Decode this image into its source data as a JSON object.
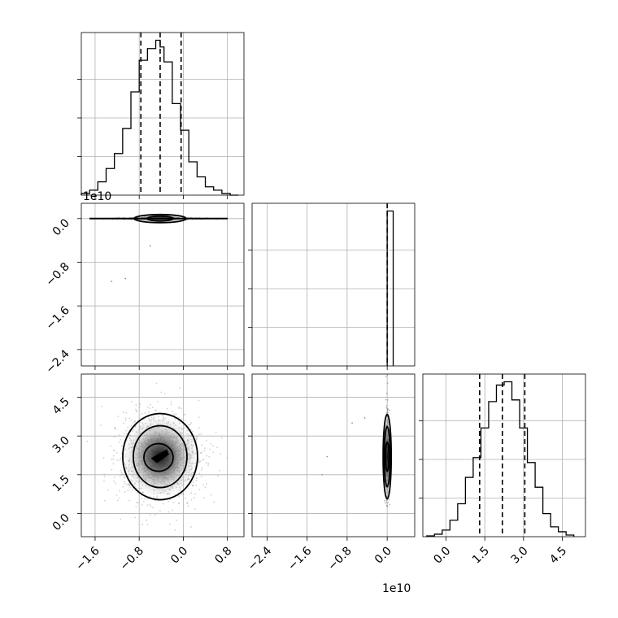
{
  "chart_data": {
    "type": "corner",
    "panels": [
      {
        "id": "p11",
        "kind": "histogram",
        "row": 0,
        "col": 0,
        "xlim": [
          -1.85,
          1.1
        ],
        "bin_edges": [
          -1.85,
          -1.7,
          -1.55,
          -1.4,
          -1.25,
          -1.1,
          -0.95,
          -0.8,
          -0.65,
          -0.5,
          -0.42,
          -0.35,
          -0.2,
          -0.05,
          0.1,
          0.25,
          0.4,
          0.55,
          0.7,
          0.85,
          1.0
        ],
        "counts": [
          0.01,
          0.03,
          0.08,
          0.16,
          0.25,
          0.4,
          0.62,
          0.81,
          0.88,
          0.93,
          0.89,
          0.8,
          0.55,
          0.39,
          0.2,
          0.11,
          0.05,
          0.03,
          0.01,
          0.0
        ],
        "quantiles": [
          -0.77,
          -0.42,
          -0.04
        ],
        "xticks": [
          -1.6,
          -0.8,
          0.0,
          0.8
        ]
      },
      {
        "id": "p21",
        "kind": "density",
        "row": 1,
        "col": 0,
        "xlim": [
          -1.85,
          1.1
        ],
        "ylim": [
          -2.7,
          0.28
        ],
        "yticks": [
          0.0,
          -0.8,
          -1.6,
          -2.4
        ],
        "ytick_labels": [
          "0.0",
          "−0.8",
          "−1.6",
          "−2.4"
        ],
        "offset_label": "1e10",
        "center": [
          -0.42,
          0.02
        ]
      },
      {
        "id": "p22",
        "kind": "histogram",
        "row": 1,
        "col": 1,
        "xlim": [
          -2.7,
          0.55
        ],
        "bin_edges": [
          0.0,
          0.12
        ],
        "counts": [
          1.0
        ],
        "quantiles": [
          0.0
        ],
        "xticks": [
          -2.4,
          -1.6,
          -0.8,
          0.0
        ]
      },
      {
        "id": "p31",
        "kind": "density",
        "row": 2,
        "col": 0,
        "xlim": [
          -1.85,
          1.1
        ],
        "ylim": [
          -0.9,
          5.4
        ],
        "yticks": [
          0.0,
          1.5,
          3.0,
          4.5
        ],
        "ytick_labels": [
          "0.0",
          "1.5",
          "3.0",
          "4.5"
        ],
        "xtick_labels": [
          "−1.6",
          "−0.8",
          "0.0",
          "0.8"
        ],
        "center": [
          -0.42,
          2.2
        ]
      },
      {
        "id": "p32",
        "kind": "density",
        "row": 2,
        "col": 1,
        "xlim": [
          -2.7,
          0.55
        ],
        "ylim": [
          -0.9,
          5.4
        ],
        "xtick_labels": [
          "−2.4",
          "−1.6",
          "−0.8",
          "0.0"
        ],
        "offset_label": "1e10",
        "center": [
          0.0,
          2.2
        ]
      },
      {
        "id": "p33",
        "kind": "histogram",
        "row": 2,
        "col": 2,
        "xlim": [
          -0.9,
          5.4
        ],
        "bin_edges": [
          -0.75,
          -0.45,
          -0.15,
          0.15,
          0.45,
          0.75,
          1.05,
          1.35,
          1.65,
          1.95,
          2.25,
          2.55,
          2.85,
          3.15,
          3.45,
          3.75,
          4.05,
          4.35,
          4.65,
          4.95
        ],
        "counts": [
          0.005,
          0.015,
          0.04,
          0.1,
          0.2,
          0.36,
          0.48,
          0.66,
          0.82,
          0.92,
          0.94,
          0.83,
          0.66,
          0.45,
          0.3,
          0.14,
          0.06,
          0.03,
          0.01
        ],
        "quantiles": [
          1.3,
          2.18,
          3.05
        ],
        "xticks": [
          0.0,
          1.5,
          3.0,
          4.5
        ],
        "xtick_labels": [
          "0.0",
          "1.5",
          "3.0",
          "4.5"
        ]
      }
    ]
  }
}
